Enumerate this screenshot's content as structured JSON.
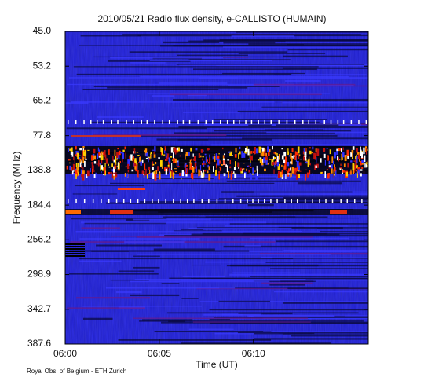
{
  "chart_data": {
    "type": "spectrogram",
    "title": "2010/05/21  Radio flux density, e-CALLISTO (HUMAIN)",
    "y_label": "Frequency (MHz)",
    "x_label": "Time (UT)",
    "footer": "Royal Obs. of Belgium - ETH Zurich",
    "ycategories": [
      "45.0",
      "53.2",
      "65.2",
      "77.8",
      "138.8",
      "184.4",
      "256.2",
      "298.9",
      "342.7",
      "387.6"
    ],
    "xlim": [
      "06:00",
      "06:16:06"
    ],
    "xticks": [
      "06:00",
      "06:05",
      "06:10"
    ]
  }
}
